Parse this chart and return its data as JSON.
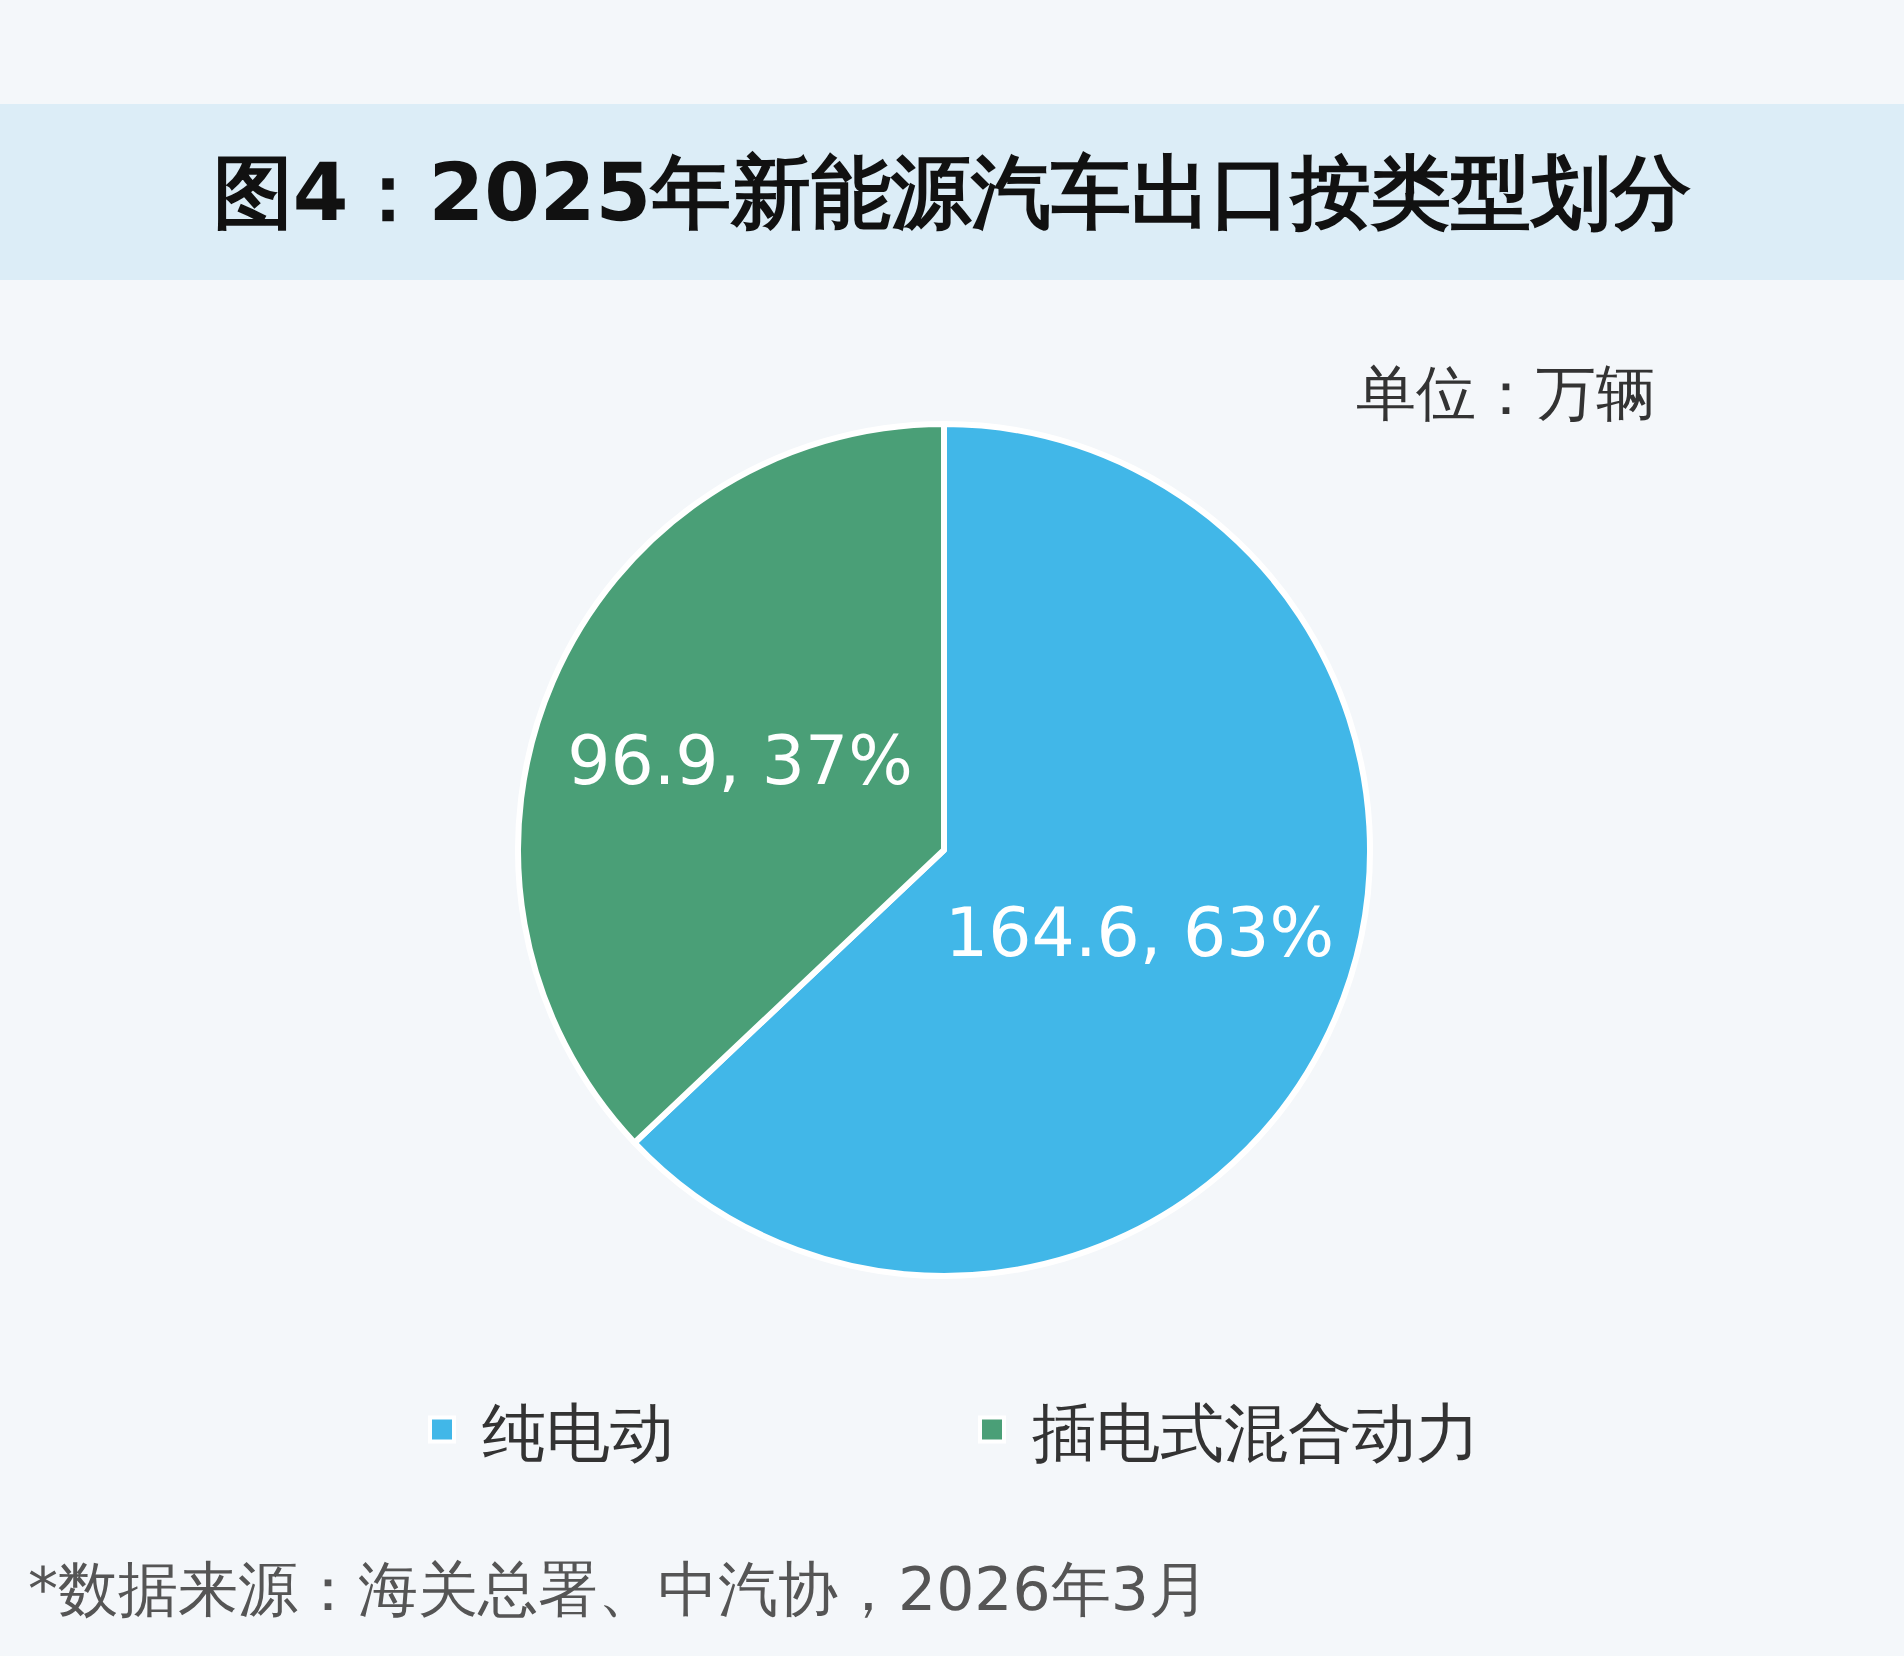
{
  "chart_data": {
    "type": "pie",
    "title": "图4：2025年新能源汽车出口按类型划分",
    "subtitle": "单位：万辆",
    "categories": [
      "纯电动",
      "插电式混合动力"
    ],
    "values": [
      164.6,
      96.9
    ],
    "colors": [
      "#41b7e8",
      "#4a9f77"
    ],
    "value_labels": [
      "164.6, 63%",
      "96.9, 37%"
    ],
    "legend": "bottom",
    "annotations": [
      "*数据来源：海关总署、中汽协，2026年3月"
    ]
  }
}
